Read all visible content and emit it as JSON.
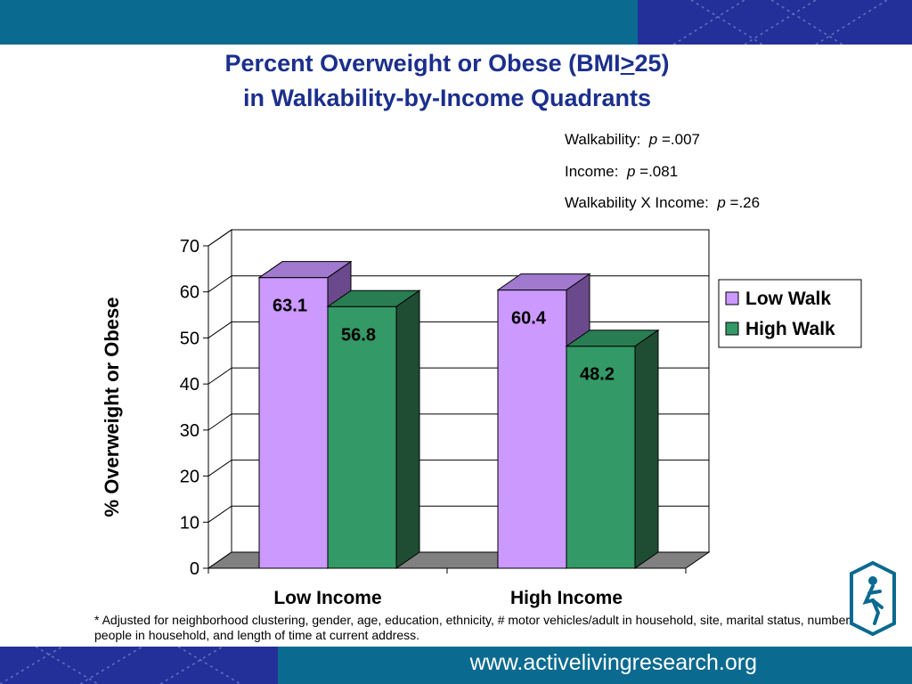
{
  "title": {
    "line1": "Percent Overweight or Obese (BMI>25)",
    "line2": "in Walkability-by-Income Quadrants"
  },
  "stats": [
    {
      "label": "Walkability:",
      "p_symbol": "p",
      "value": "=.007"
    },
    {
      "label": "Income:",
      "p_symbol": "p",
      "value": "=.081"
    },
    {
      "label": "Walkability X Income:",
      "p_symbol": "p",
      "value": "=.26"
    }
  ],
  "footnote": "* Adjusted for neighborhood clustering, gender, age, education, ethnicity, # motor vehicles/adult in household, site, marital status, number of people in household, and length of time at current address.",
  "url": "www.activelivingresearch.org",
  "colors": {
    "low_walk_front": "#cc99ff",
    "low_walk_top": "#a179cf",
    "low_walk_side": "#6a4a8c",
    "high_walk_front": "#339966",
    "high_walk_top": "#287d52",
    "high_walk_side": "#1f4d33",
    "floor": "#808080",
    "title": "#1b2f8c",
    "band": "#0a6a90",
    "band_pattern": "#23309a"
  },
  "chart_data": {
    "type": "bar",
    "categories": [
      "Low Income",
      "High Income"
    ],
    "series": [
      {
        "name": "Low Walk",
        "values": [
          63.1,
          60.4
        ]
      },
      {
        "name": "High Walk",
        "values": [
          56.8,
          48.2
        ]
      }
    ],
    "ylabel": "% Overweight or Obese",
    "ylim": [
      0,
      70
    ],
    "yticks": [
      0,
      10,
      20,
      30,
      40,
      50,
      60,
      70
    ],
    "grid": true,
    "legend": "right",
    "data_labels": true,
    "style": "3d"
  }
}
